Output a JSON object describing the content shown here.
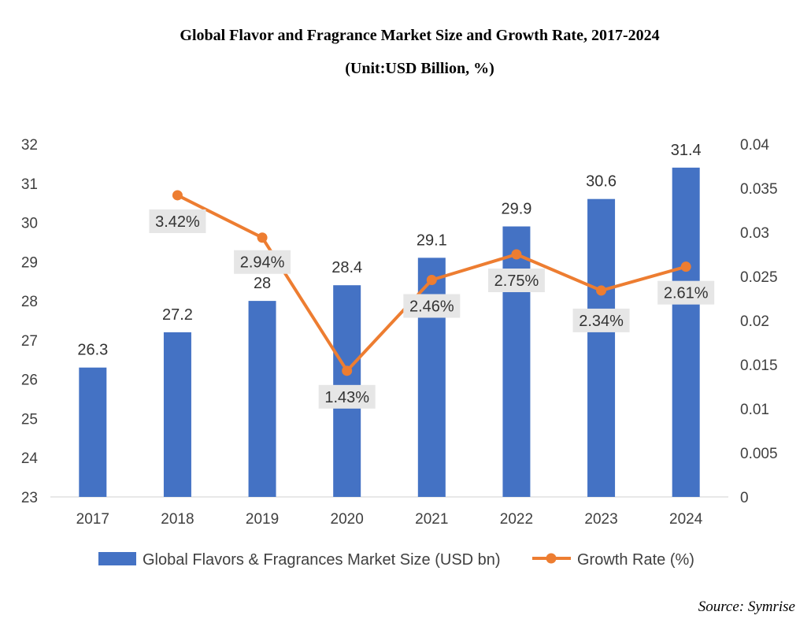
{
  "title": "Global Flavor and Fragrance Market Size and Growth Rate, 2017-2024",
  "subtitle": "(Unit:USD Billion, %)",
  "source": "Source:  Symrise",
  "colors": {
    "bar": "#4472C4",
    "line": "#ED7D31",
    "label_bg": "#E6E6E6",
    "axis": "#D0D0D0"
  },
  "chart_data": {
    "type": "bar",
    "categories": [
      "2017",
      "2018",
      "2019",
      "2020",
      "2021",
      "2022",
      "2023",
      "2024"
    ],
    "series": [
      {
        "name": "Global Flavors & Fragrances Market Size (USD bn)",
        "type": "bar",
        "axis": "left",
        "values": [
          26.3,
          27.2,
          28,
          28.4,
          29.1,
          29.9,
          30.6,
          31.4
        ],
        "labels": [
          "26.3",
          "27.2",
          "28",
          "28.4",
          "29.1",
          "29.9",
          "30.6",
          "31.4"
        ]
      },
      {
        "name": "Growth Rate (%)",
        "type": "line",
        "axis": "right",
        "values": [
          null,
          0.0342,
          0.0294,
          0.0143,
          0.0246,
          0.0275,
          0.0234,
          0.0261
        ],
        "labels": [
          null,
          "3.42%",
          "2.94%",
          "1.43%",
          "2.46%",
          "2.75%",
          "2.34%",
          "2.61%"
        ]
      }
    ],
    "ylim_left": [
      23,
      32
    ],
    "yticks_left": [
      "23",
      "24",
      "25",
      "26",
      "27",
      "28",
      "29",
      "30",
      "31",
      "32"
    ],
    "ylim_right": [
      0,
      0.04
    ],
    "yticks_right": [
      "0",
      "0.005",
      "0.01",
      "0.015",
      "0.02",
      "0.025",
      "0.03",
      "0.035",
      "0.04"
    ],
    "grid": false,
    "legend_position": "bottom"
  }
}
